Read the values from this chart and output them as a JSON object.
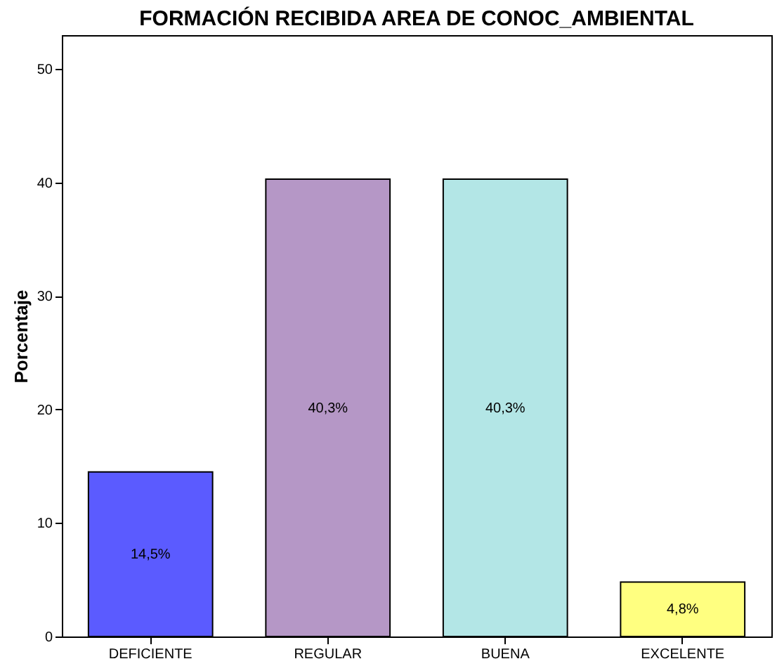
{
  "chart_data": {
    "type": "bar",
    "title": "FORMACIÓN RECIBIDA AREA DE CONOC_AMBIENTAL",
    "ylabel": "Porcentaje",
    "categories": [
      "DEFICIENTE",
      "REGULAR",
      "BUENA",
      "EXCELENTE"
    ],
    "values": [
      14.5,
      40.3,
      40.3,
      4.8
    ],
    "colors": [
      "#5b5bff",
      "#b597c6",
      "#b3e6e6",
      "#ffff80"
    ],
    "value_labels": [
      "14,5%",
      "40,3%",
      "40,3%",
      "4,8%"
    ],
    "ylim": [
      0,
      53
    ],
    "yticks": [
      0,
      10,
      20,
      30,
      40,
      50
    ],
    "grid": false,
    "legend": false
  }
}
